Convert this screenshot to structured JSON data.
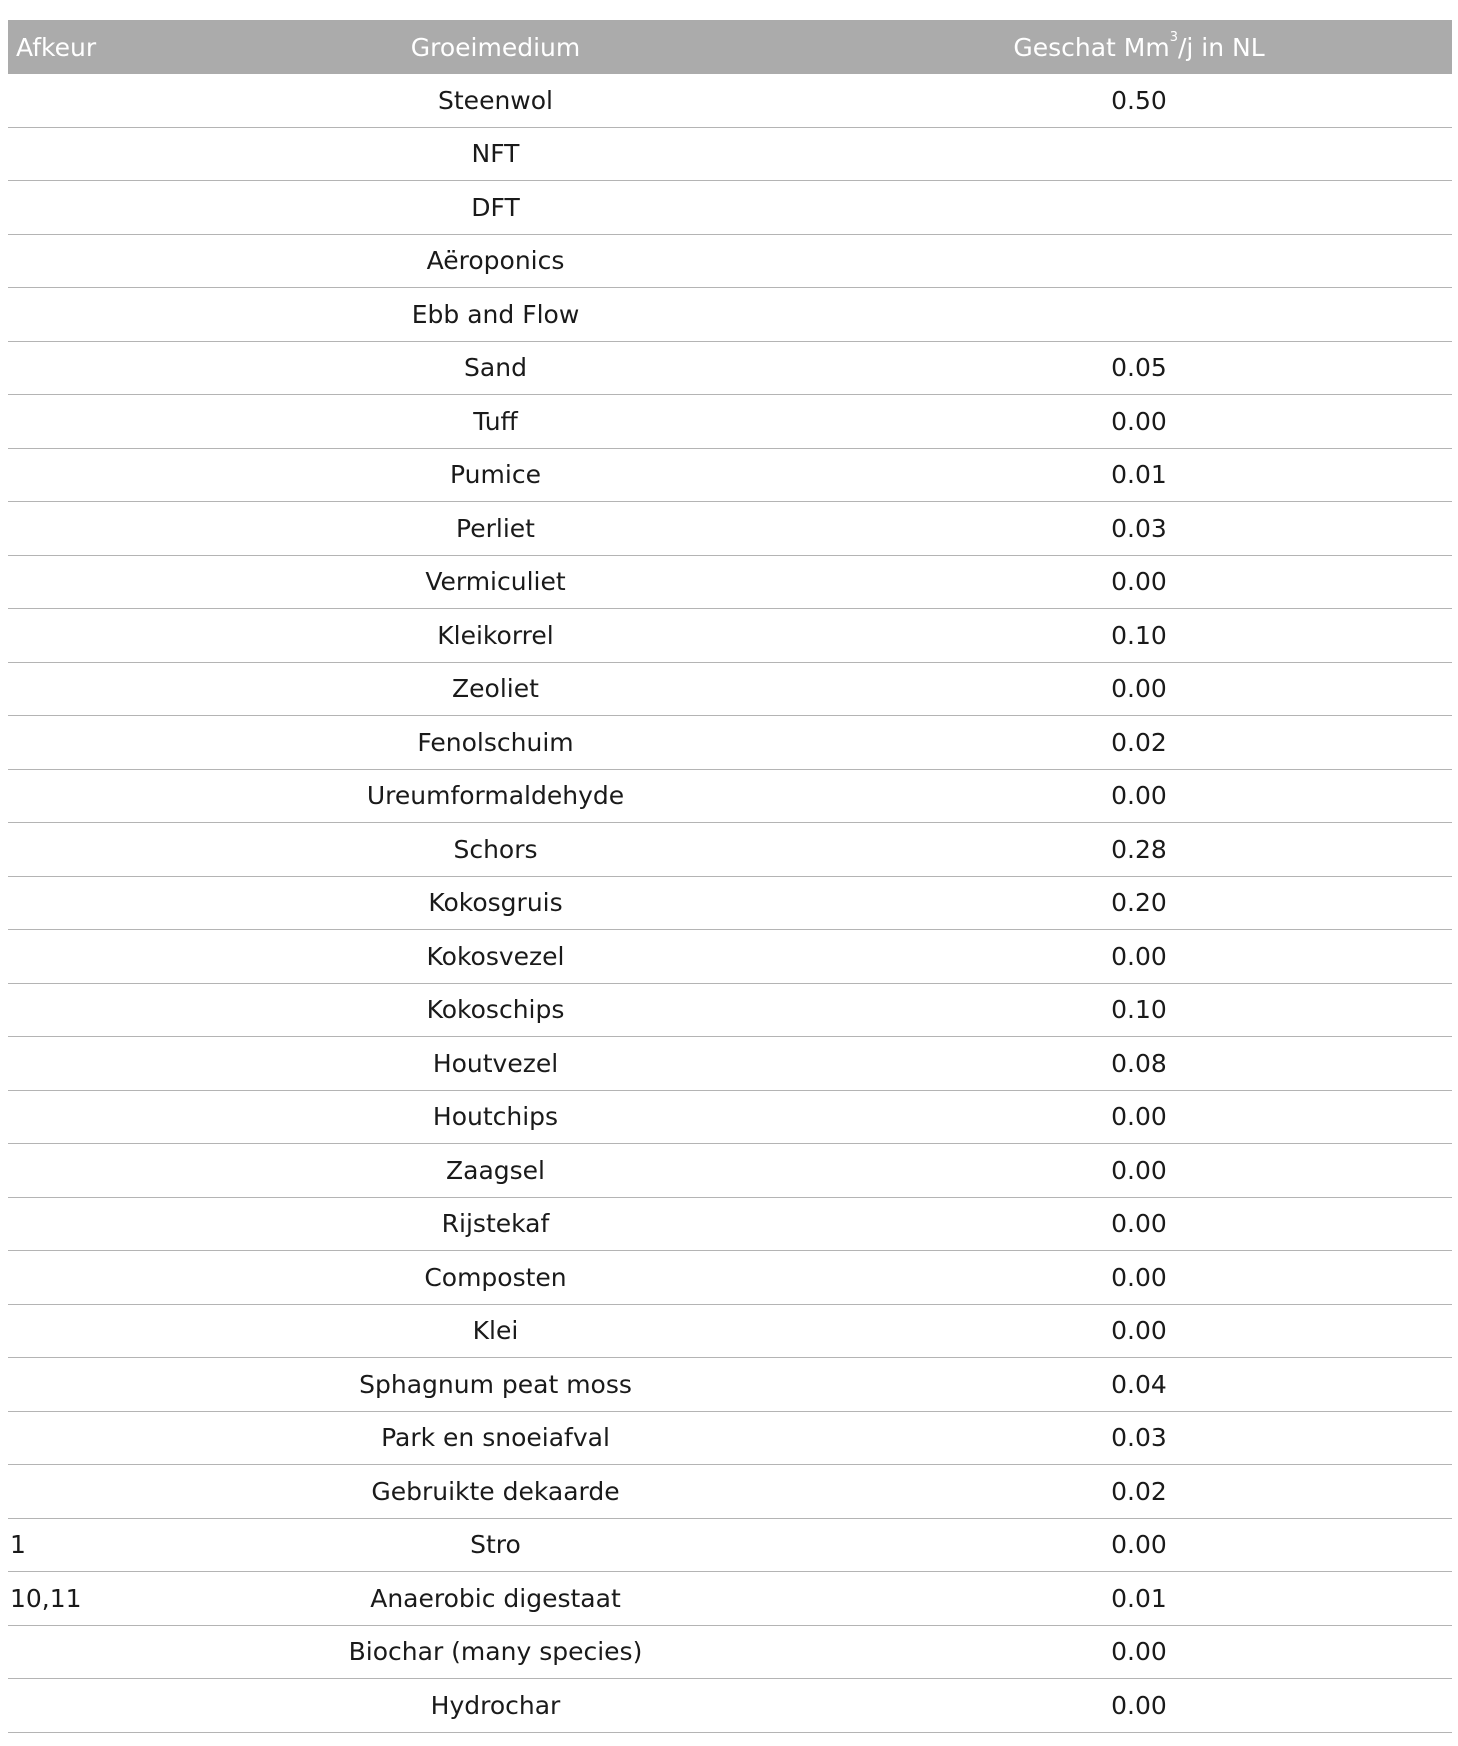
{
  "header": {
    "afkeur": "Afkeur",
    "groeimedium": "Groeimedium",
    "geschat_pre": "Geschat Mm",
    "geschat_sup": "3",
    "geschat_post": "/j in NL"
  },
  "rows": [
    {
      "afkeur": "",
      "medium": "Steenwol",
      "value": "0.50"
    },
    {
      "afkeur": "",
      "medium": "NFT",
      "value": ""
    },
    {
      "afkeur": "",
      "medium": "DFT",
      "value": ""
    },
    {
      "afkeur": "",
      "medium": "Aëroponics",
      "value": ""
    },
    {
      "afkeur": "",
      "medium": "Ebb and Flow",
      "value": ""
    },
    {
      "afkeur": "",
      "medium": "Sand",
      "value": "0.05"
    },
    {
      "afkeur": "",
      "medium": "Tuff",
      "value": "0.00"
    },
    {
      "afkeur": "",
      "medium": "Pumice",
      "value": "0.01"
    },
    {
      "afkeur": "",
      "medium": "Perliet",
      "value": "0.03"
    },
    {
      "afkeur": "",
      "medium": "Vermiculiet",
      "value": "0.00"
    },
    {
      "afkeur": "",
      "medium": "Kleikorrel",
      "value": "0.10"
    },
    {
      "afkeur": "",
      "medium": "Zeoliet",
      "value": "0.00"
    },
    {
      "afkeur": "",
      "medium": "Fenolschuim",
      "value": "0.02"
    },
    {
      "afkeur": "",
      "medium": "Ureumformaldehyde",
      "value": "0.00"
    },
    {
      "afkeur": "",
      "medium": "Schors",
      "value": "0.28"
    },
    {
      "afkeur": "",
      "medium": "Kokosgruis",
      "value": "0.20"
    },
    {
      "afkeur": "",
      "medium": "Kokosvezel",
      "value": "0.00"
    },
    {
      "afkeur": "",
      "medium": "Kokoschips",
      "value": "0.10"
    },
    {
      "afkeur": "",
      "medium": "Houtvezel",
      "value": "0.08"
    },
    {
      "afkeur": "",
      "medium": "Houtchips",
      "value": "0.00"
    },
    {
      "afkeur": "",
      "medium": "Zaagsel",
      "value": "0.00"
    },
    {
      "afkeur": "",
      "medium": "Rijstekaf",
      "value": "0.00"
    },
    {
      "afkeur": "",
      "medium": "Composten",
      "value": "0.00"
    },
    {
      "afkeur": "",
      "medium": "Klei",
      "value": "0.00"
    },
    {
      "afkeur": "",
      "medium": "Sphagnum peat moss",
      "value": "0.04"
    },
    {
      "afkeur": "",
      "medium": "Park en snoeiafval",
      "value": "0.03"
    },
    {
      "afkeur": "",
      "medium": "Gebruikte dekaarde",
      "value": "0.02"
    },
    {
      "afkeur": "1",
      "medium": "Stro",
      "value": "0.00"
    },
    {
      "afkeur": "10,11",
      "medium": "Anaerobic digestaat",
      "value": "0.01"
    },
    {
      "afkeur": "",
      "medium": "Biochar (many species)",
      "value": "0.00"
    },
    {
      "afkeur": "",
      "medium": "Hydrochar",
      "value": "0.00"
    }
  ]
}
